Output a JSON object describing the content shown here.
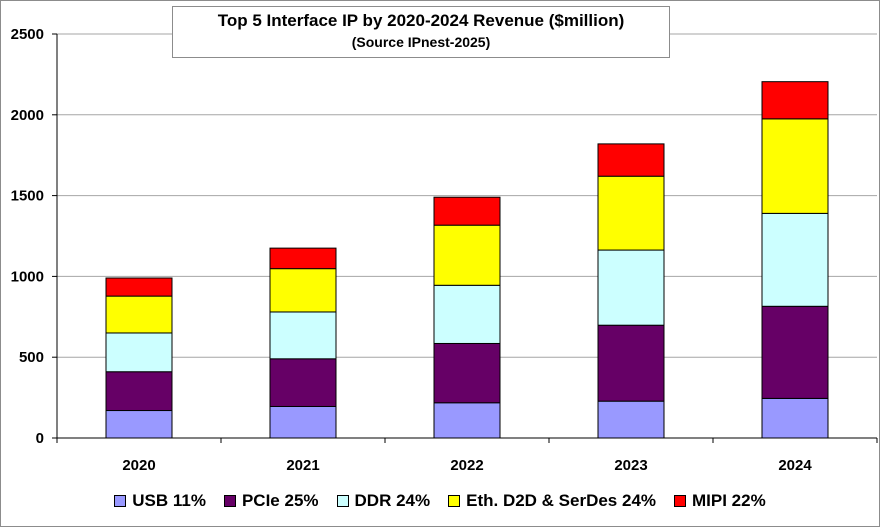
{
  "chart_data": {
    "type": "bar",
    "stacked": true,
    "title": "Top 5 Interface IP by  2020-2024 Revenue ($million)",
    "subtitle": "(Source IPnest-2025)",
    "categories": [
      "2020",
      "2021",
      "2022",
      "2023",
      "2024"
    ],
    "ylim": [
      0,
      2500
    ],
    "yticks": [
      0,
      500,
      1000,
      1500,
      2000,
      2500
    ],
    "ytick_labels": [
      "0",
      "500",
      "1000",
      "1500",
      "2000",
      "2500"
    ],
    "grid": true,
    "legend_position": "bottom",
    "series": [
      {
        "name": "USB 11%",
        "color": "#9999FF",
        "values": [
          170,
          195,
          218,
          228,
          245
        ]
      },
      {
        "name": "PCIe 25%",
        "color": "#660066",
        "values": [
          240,
          295,
          367,
          470,
          570
        ]
      },
      {
        "name": "DDR 24%",
        "color": "#CCFFFF",
        "values": [
          240,
          290,
          360,
          465,
          575
        ]
      },
      {
        "name": "Eth. D2D & SerDes 24%",
        "color": "#FFFF00",
        "values": [
          228,
          268,
          372,
          457,
          585
        ]
      },
      {
        "name": "MIPI 22%",
        "color": "#FF0000",
        "values": [
          112,
          127,
          173,
          200,
          230
        ]
      }
    ]
  }
}
